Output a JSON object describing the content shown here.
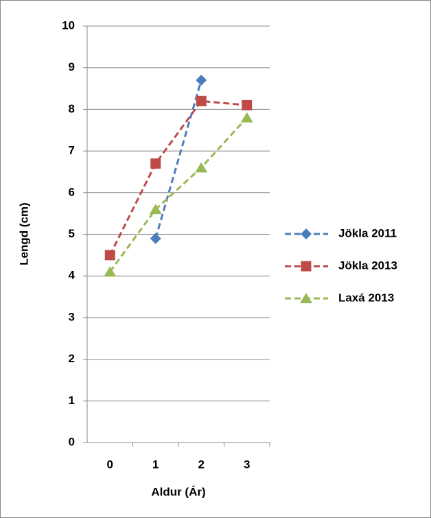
{
  "chart_data": {
    "type": "line",
    "x_label": "Aldur (Ár)",
    "y_label": "Lengd (cm)",
    "categories": [
      "0",
      "1",
      "2",
      "3"
    ],
    "series": [
      {
        "name": "Jökla 2011",
        "color": "#4a7ebb",
        "marker": "diamond",
        "values": [
          null,
          4.9,
          8.7,
          null
        ]
      },
      {
        "name": "Jökla 2013",
        "color": "#be4b48",
        "marker": "square",
        "values": [
          4.5,
          6.7,
          8.2,
          8.1
        ]
      },
      {
        "name": "Laxá 2013",
        "color": "#98b954",
        "marker": "triangle",
        "values": [
          4.1,
          5.6,
          6.6,
          7.8
        ]
      }
    ],
    "ylim": [
      0,
      10
    ],
    "yticks": [
      0,
      1,
      2,
      3,
      4,
      5,
      6,
      7,
      8,
      9,
      10
    ],
    "grid": true,
    "legend": "right"
  }
}
